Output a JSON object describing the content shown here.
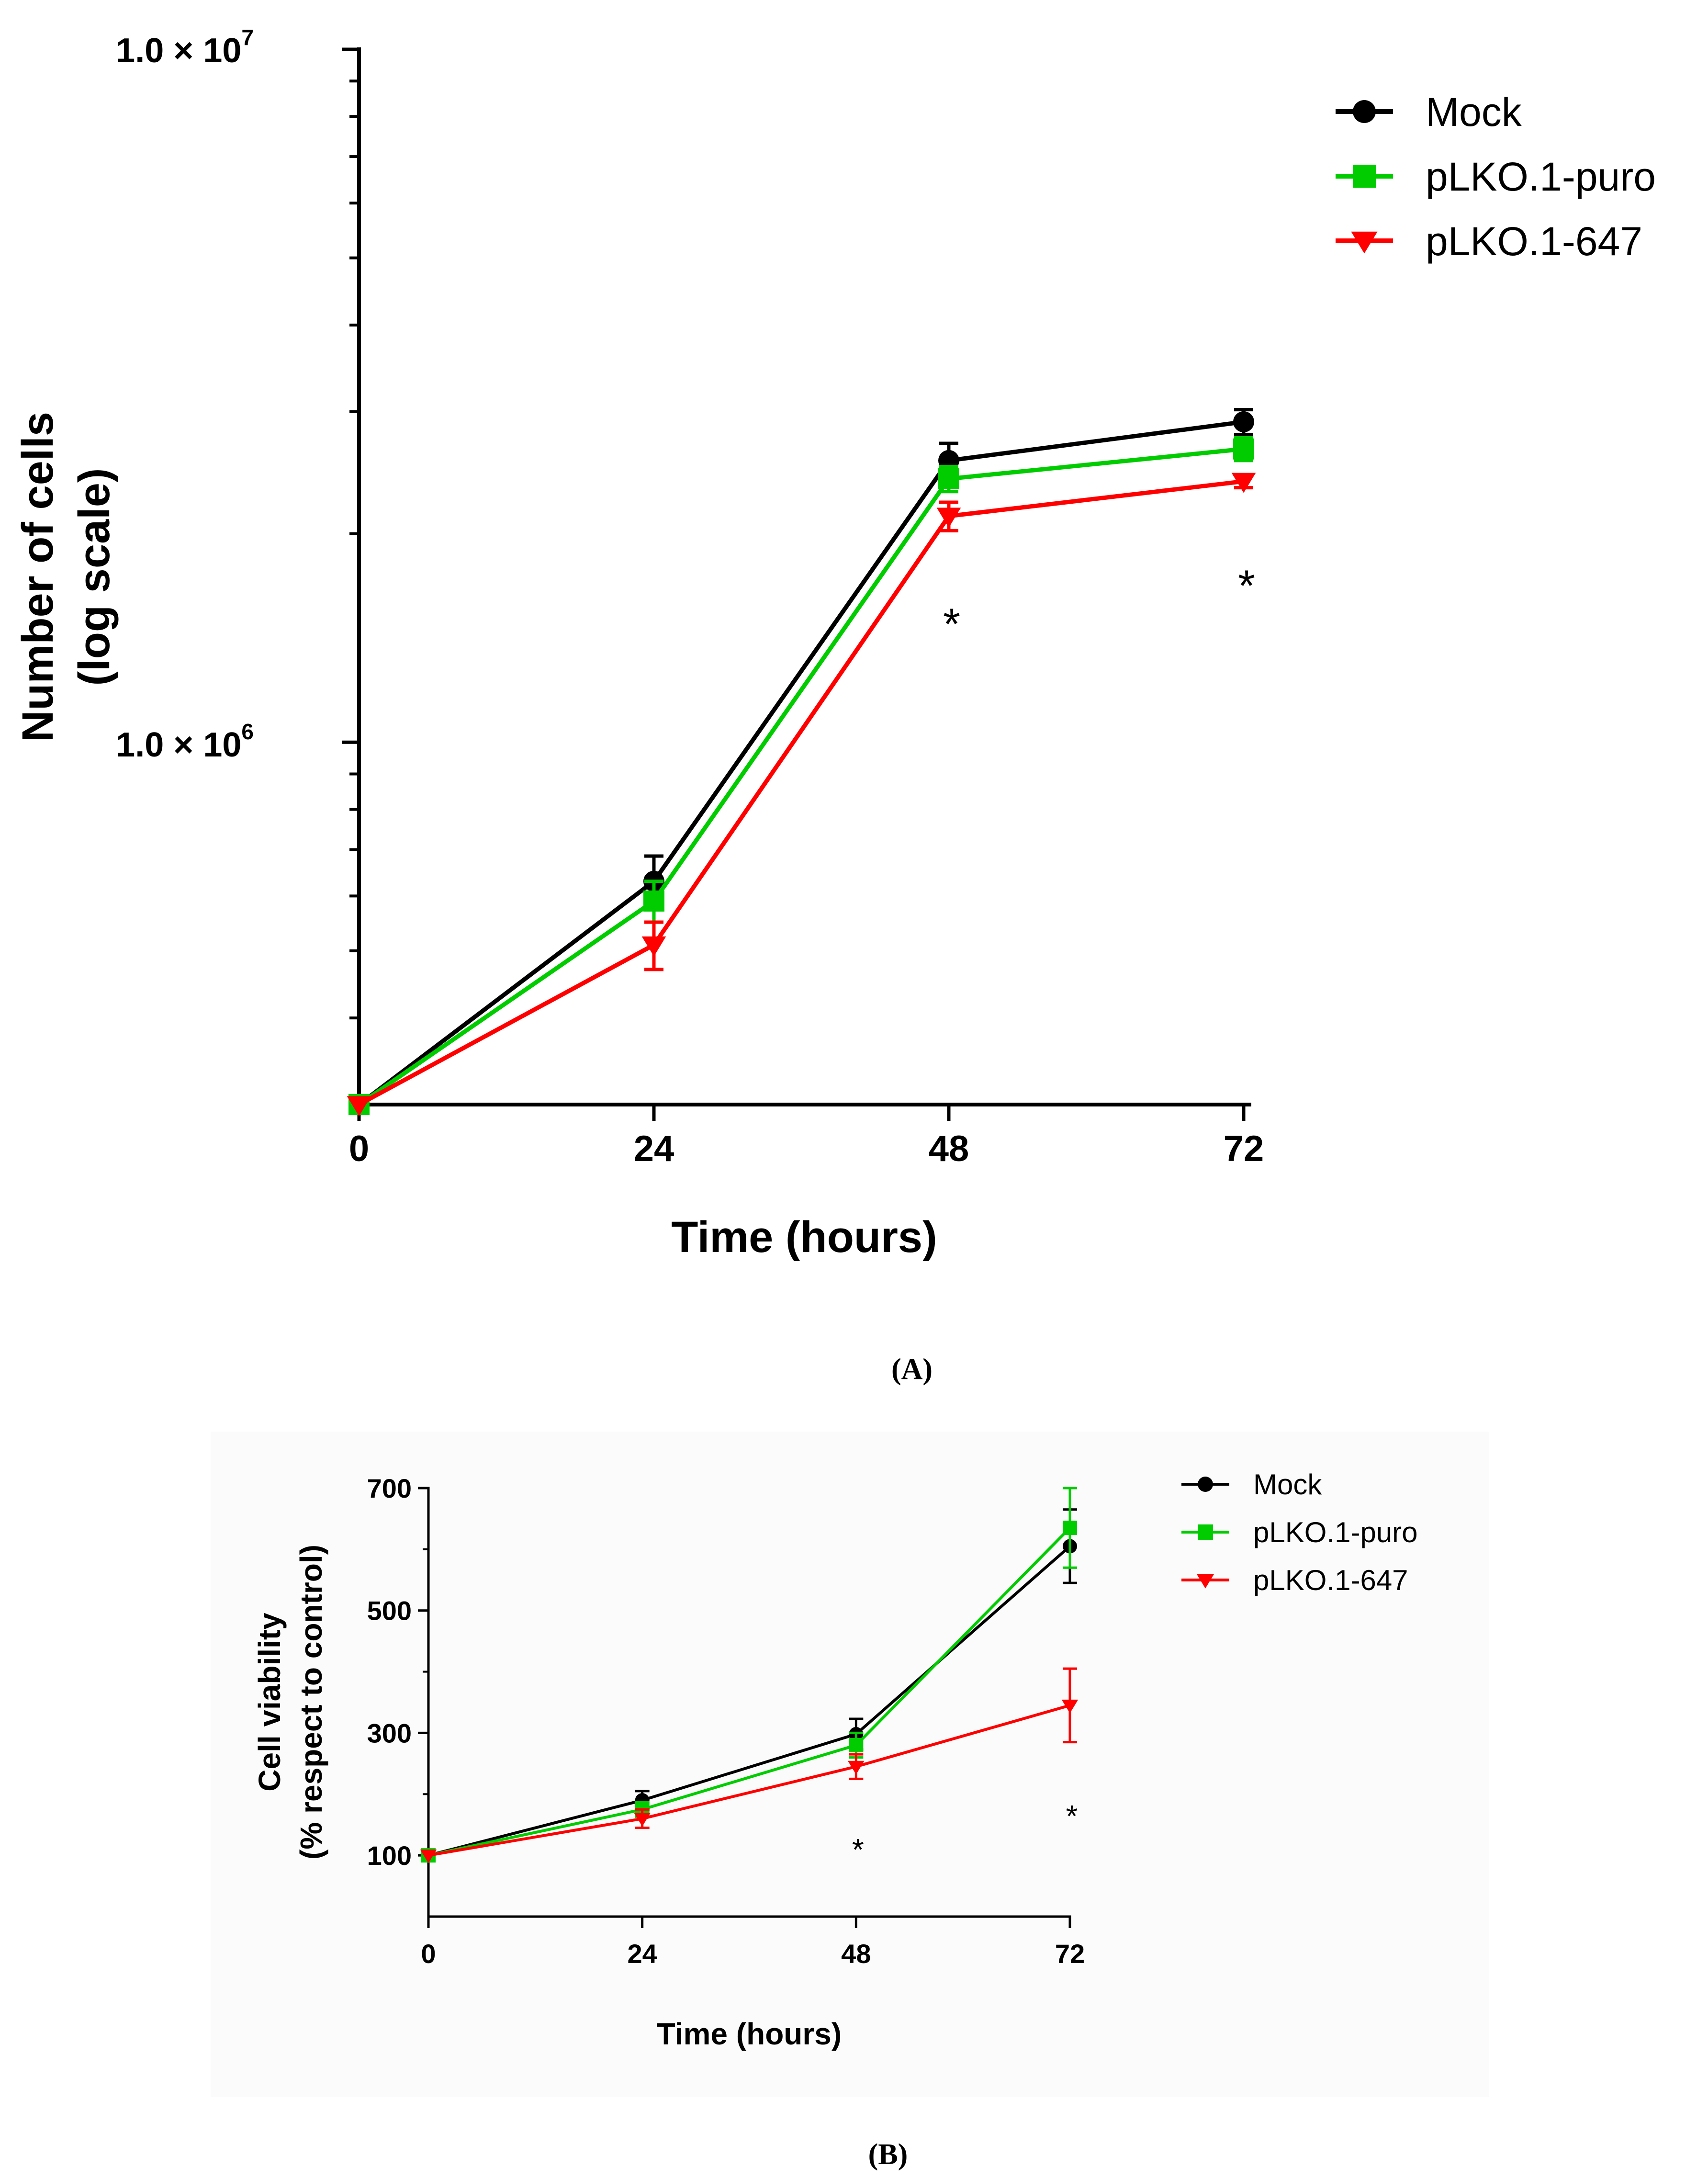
{
  "chart_data": [
    {
      "panel": "(A)",
      "type": "line",
      "yscale": "log",
      "x": [
        0,
        24,
        48,
        72
      ],
      "xlabel": "Time (hours)",
      "ylabel_lines": [
        "Number of cells",
        "(log scale)"
      ],
      "y_tick_labels": [
        {
          "value": 1000000,
          "mantissa": "1.0",
          "exponent": "6"
        },
        {
          "value": 10000000,
          "mantissa": "1.0",
          "exponent": "7"
        }
      ],
      "ylim": [
        300000,
        10000000
      ],
      "xlim": [
        0,
        72
      ],
      "legend_position": "top-right",
      "series": [
        {
          "name": "Mock",
          "color": "#000000",
          "marker": "circle",
          "values": [
            300000,
            630000,
            2550000,
            2900000
          ],
          "errors": [
            0,
            55000,
            150000,
            120000
          ]
        },
        {
          "name": "pLKO.1-puro",
          "color": "#00cc00",
          "marker": "square",
          "values": [
            300000,
            590000,
            2400000,
            2650000
          ],
          "errors": [
            0,
            40000,
            100000,
            100000
          ]
        },
        {
          "name": "pLKO.1-647",
          "color": "#ff0000",
          "marker": "triangle-down",
          "values": [
            300000,
            510000,
            2120000,
            2380000
          ],
          "errors": [
            0,
            40000,
            100000,
            50000
          ]
        }
      ],
      "annotations": [
        {
          "x": 48,
          "text": "*"
        },
        {
          "x": 72,
          "text": "*"
        }
      ]
    },
    {
      "panel": "(B)",
      "type": "line",
      "x": [
        0,
        24,
        48,
        72
      ],
      "xlabel": "Time (hours)",
      "ylabel_lines": [
        "Cell viability",
        "(% respect to control)"
      ],
      "y_ticks": [
        100,
        300,
        500,
        700
      ],
      "ylim": [
        0,
        700
      ],
      "xlim": [
        0,
        72
      ],
      "legend_position": "top-right",
      "series": [
        {
          "name": "Mock",
          "color": "#000000",
          "marker": "circle",
          "values": [
            100,
            190,
            298,
            605
          ],
          "errors": [
            0,
            15,
            25,
            60
          ]
        },
        {
          "name": "pLKO.1-puro",
          "color": "#00cc00",
          "marker": "square",
          "values": [
            100,
            175,
            280,
            635
          ],
          "errors": [
            0,
            12,
            20,
            65
          ]
        },
        {
          "name": "pLKO.1-647",
          "color": "#ff0000",
          "marker": "triangle-down",
          "values": [
            100,
            160,
            245,
            345
          ],
          "errors": [
            0,
            15,
            20,
            60
          ]
        }
      ],
      "annotations": [
        {
          "x": 48,
          "text": "*"
        },
        {
          "x": 72,
          "text": "*"
        }
      ]
    }
  ]
}
